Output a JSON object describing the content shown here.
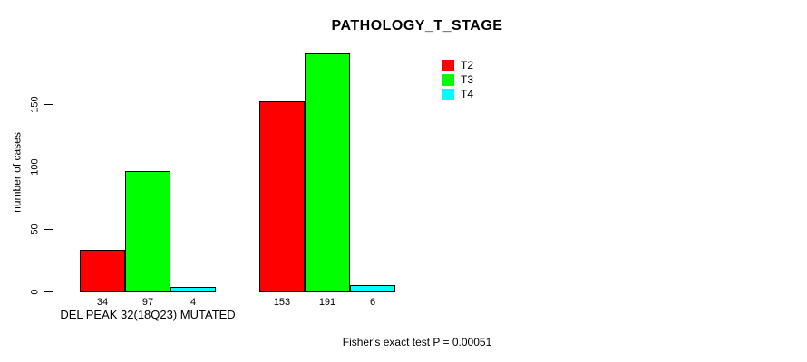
{
  "title": "PATHOLOGY_T_STAGE",
  "footer": "Fisher's exact test P = 0.00051",
  "chart_data": {
    "type": "bar",
    "title": "PATHOLOGY_T_STAGE",
    "xlabel": "",
    "ylabel": "number of cases",
    "ylim": [
      0,
      150
    ],
    "yticks": [
      0,
      50,
      100,
      150
    ],
    "grid": false,
    "legend_position": "top-right",
    "bar_border_color": "#000000",
    "background_color": "#ffffff",
    "categories": [
      "DEL PEAK 32(18Q23) MUTATED",
      ""
    ],
    "groups": [
      {
        "label": "DEL PEAK 32(18Q23) MUTATED",
        "values": [
          34,
          97,
          4
        ]
      },
      {
        "label": "",
        "values": [
          153,
          191,
          6
        ]
      }
    ],
    "series": [
      {
        "name": "T2",
        "color": "#ff0000",
        "values": [
          34,
          153
        ]
      },
      {
        "name": "T3",
        "color": "#00ff00",
        "values": [
          97,
          191
        ]
      },
      {
        "name": "T4",
        "color": "#00ffff",
        "values": [
          4,
          6
        ]
      }
    ],
    "annotation": "Fisher's exact test P = 0.00051"
  }
}
